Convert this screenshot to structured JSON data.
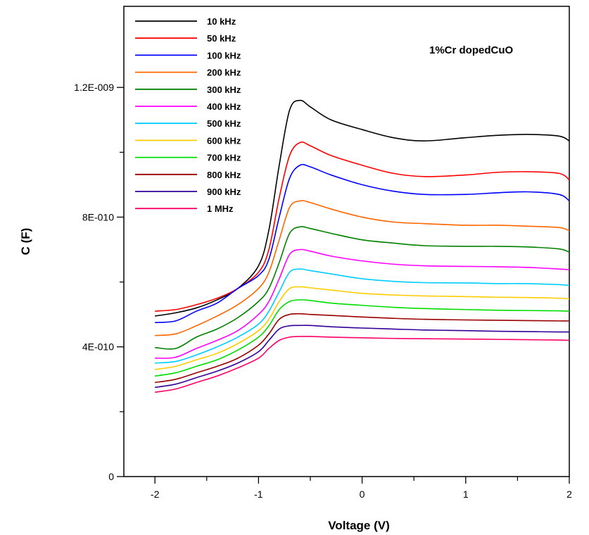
{
  "chart_data": {
    "type": "line",
    "xlabel": "Voltage (V)",
    "ylabel": "C (F)",
    "annotation": "1%Cr dopedCuO",
    "xlim": [
      -2.3,
      2.0
    ],
    "ylim": [
      0,
      1.45e-09
    ],
    "x_ticks": [
      -2,
      -1,
      0,
      1,
      2
    ],
    "x_tick_labels": [
      "-2",
      "-1",
      "0",
      "1",
      "2"
    ],
    "y_ticks": [
      0,
      4e-10,
      8e-10,
      1.2e-09
    ],
    "y_tick_labels": [
      "0",
      "4E-010",
      "8E-010",
      "1.2E-009"
    ],
    "grid": false,
    "legend_position": "top-left",
    "x": [
      -2.0,
      -1.8,
      -1.6,
      -1.4,
      -1.2,
      -1.0,
      -0.9,
      -0.8,
      -0.7,
      -0.6,
      -0.5,
      -0.3,
      0.0,
      0.3,
      0.6,
      1.0,
      1.3,
      1.6,
      1.9,
      2.0
    ],
    "series": [
      {
        "name": "10 kHz",
        "color": "#000000",
        "values": [
          4.95e-10,
          5.05e-10,
          5.2e-10,
          5.45e-10,
          5.8e-10,
          6.5e-10,
          7.6e-10,
          9.6e-10,
          1.13e-09,
          1.16e-09,
          1.14e-09,
          1.1e-09,
          1.07e-09,
          1.045e-09,
          1.035e-09,
          1.045e-09,
          1.052e-09,
          1.055e-09,
          1.05e-09,
          1.035e-09
        ]
      },
      {
        "name": "50 kHz",
        "color": "#ff0000",
        "values": [
          5.1e-10,
          5.15e-10,
          5.3e-10,
          5.5e-10,
          5.8e-10,
          6.3e-10,
          7e-10,
          8.6e-10,
          9.9e-10,
          1.03e-09,
          1.02e-09,
          9.9e-10,
          9.6e-10,
          9.35e-10,
          9.25e-10,
          9.3e-10,
          9.38e-10,
          9.4e-10,
          9.35e-10,
          9.15e-10
        ]
      },
      {
        "name": "100 kHz",
        "color": "#0000ff",
        "values": [
          4.75e-10,
          4.8e-10,
          5.1e-10,
          5.35e-10,
          5.8e-10,
          6.2e-10,
          6.7e-10,
          8e-10,
          9.2e-10,
          9.6e-10,
          9.55e-10,
          9.3e-10,
          9e-10,
          8.8e-10,
          8.7e-10,
          8.7e-10,
          8.75e-10,
          8.78e-10,
          8.7e-10,
          8.5e-10
        ]
      },
      {
        "name": "200 kHz",
        "color": "#ff6600",
        "values": [
          4.35e-10,
          4.4e-10,
          4.65e-10,
          4.95e-10,
          5.3e-10,
          5.8e-10,
          6.3e-10,
          7.3e-10,
          8.3e-10,
          8.5e-10,
          8.45e-10,
          8.25e-10,
          8e-10,
          7.85e-10,
          7.8e-10,
          7.75e-10,
          7.75e-10,
          7.72e-10,
          7.68e-10,
          7.58e-10
        ]
      },
      {
        "name": "300 kHz",
        "color": "#008000",
        "values": [
          3.98e-10,
          3.95e-10,
          4.3e-10,
          4.55e-10,
          4.9e-10,
          5.4e-10,
          5.8e-10,
          6.6e-10,
          7.5e-10,
          7.7e-10,
          7.65e-10,
          7.5e-10,
          7.3e-10,
          7.2e-10,
          7.12e-10,
          7.1e-10,
          7.1e-10,
          7.08e-10,
          7.02e-10,
          6.92e-10
        ]
      },
      {
        "name": "400 kHz",
        "color": "#ff00ff",
        "values": [
          3.65e-10,
          3.68e-10,
          3.95e-10,
          4.2e-10,
          4.5e-10,
          5e-10,
          5.4e-10,
          6.1e-10,
          6.85e-10,
          7e-10,
          6.95e-10,
          6.8e-10,
          6.65e-10,
          6.55e-10,
          6.5e-10,
          6.48e-10,
          6.47e-10,
          6.45e-10,
          6.4e-10,
          6.38e-10
        ]
      },
      {
        "name": "500 kHz",
        "color": "#00ccff",
        "values": [
          3.5e-10,
          3.55e-10,
          3.75e-10,
          4e-10,
          4.3e-10,
          4.7e-10,
          5.1e-10,
          5.7e-10,
          6.3e-10,
          6.4e-10,
          6.35e-10,
          6.25e-10,
          6.1e-10,
          6.02e-10,
          5.98e-10,
          5.97e-10,
          5.95e-10,
          5.95e-10,
          5.92e-10,
          5.9e-10
        ]
      },
      {
        "name": "600 kHz",
        "color": "#ffcc00",
        "values": [
          3.3e-10,
          3.4e-10,
          3.6e-10,
          3.8e-10,
          4.1e-10,
          4.5e-10,
          4.85e-10,
          5.4e-10,
          5.8e-10,
          5.85e-10,
          5.82e-10,
          5.75e-10,
          5.65e-10,
          5.6e-10,
          5.57e-10,
          5.55e-10,
          5.53e-10,
          5.52e-10,
          5.5e-10,
          5.48e-10
        ]
      },
      {
        "name": "700 kHz",
        "color": "#00dd00",
        "values": [
          3.1e-10,
          3.2e-10,
          3.4e-10,
          3.6e-10,
          3.9e-10,
          4.3e-10,
          4.65e-10,
          5.15e-10,
          5.4e-10,
          5.45e-10,
          5.43e-10,
          5.35e-10,
          5.28e-10,
          5.22e-10,
          5.18e-10,
          5.15e-10,
          5.13e-10,
          5.12e-10,
          5.11e-10,
          5.1e-10
        ]
      },
      {
        "name": "800 kHz",
        "color": "#990000",
        "values": [
          2.9e-10,
          3e-10,
          3.2e-10,
          3.4e-10,
          3.65e-10,
          4.05e-10,
          4.4e-10,
          4.85e-10,
          5e-10,
          5.02e-10,
          5e-10,
          4.97e-10,
          4.92e-10,
          4.88e-10,
          4.85e-10,
          4.83e-10,
          4.82e-10,
          4.81e-10,
          4.8e-10,
          4.8e-10
        ]
      },
      {
        "name": "900 kHz",
        "color": "#330099",
        "values": [
          2.75e-10,
          2.85e-10,
          3.05e-10,
          3.25e-10,
          3.5e-10,
          3.85e-10,
          4.2e-10,
          4.55e-10,
          4.65e-10,
          4.66e-10,
          4.66e-10,
          4.62e-10,
          4.58e-10,
          4.55e-10,
          4.52e-10,
          4.5e-10,
          4.48e-10,
          4.47e-10,
          4.46e-10,
          4.46e-10
        ]
      },
      {
        "name": "1 MHz",
        "color": "#ff0066",
        "values": [
          2.6e-10,
          2.7e-10,
          2.9e-10,
          3.1e-10,
          3.35e-10,
          3.65e-10,
          3.95e-10,
          4.2e-10,
          4.3e-10,
          4.32e-10,
          4.32e-10,
          4.3e-10,
          4.28e-10,
          4.26e-10,
          4.25e-10,
          4.24e-10,
          4.23e-10,
          4.22e-10,
          4.21e-10,
          4.2e-10
        ]
      }
    ]
  }
}
